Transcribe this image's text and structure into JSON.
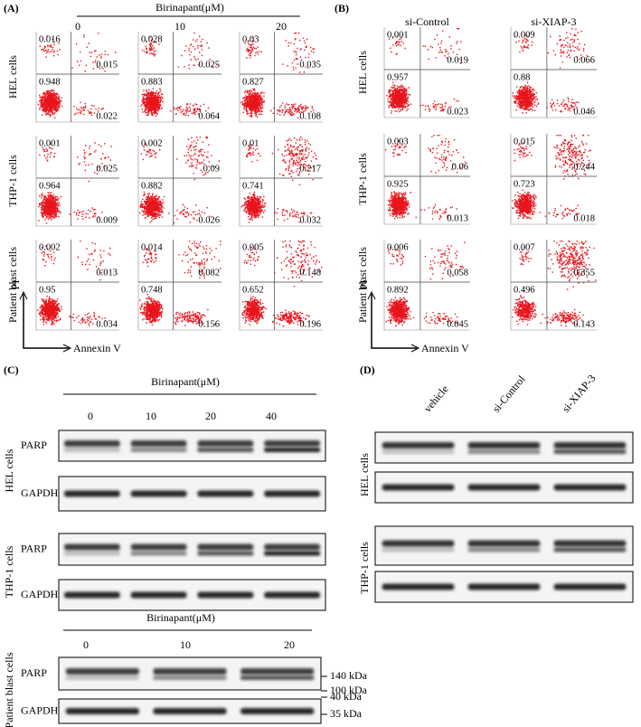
{
  "panel_a": {
    "label": "(A)",
    "treatment": "Birinapant(μM)",
    "columns": [
      "0",
      "10",
      "20"
    ],
    "rows": [
      {
        "cell_line": "HEL cells",
        "plots": [
          [
            "0.016",
            "0.015",
            "0.948",
            "0.022"
          ],
          [
            "0.028",
            "0.025",
            "0.883",
            "0.064"
          ],
          [
            "0.03",
            "0.035",
            "0.827",
            "0.108"
          ]
        ]
      },
      {
        "cell_line": "THP-1 cells",
        "plots": [
          [
            "0.001",
            "0.025",
            "0.964",
            "0.009"
          ],
          [
            "0.002",
            "0.09",
            "0.882",
            "0.026"
          ],
          [
            "0.01",
            "0.217",
            "0.741",
            "0.032"
          ]
        ]
      },
      {
        "cell_line": "Patient blast cells",
        "plots": [
          [
            "0.002",
            "0.013",
            "0.95",
            "0.034"
          ],
          [
            "0.014",
            "0.082",
            "0.748",
            "0.156"
          ],
          [
            "0.005",
            "0.148",
            "0.652",
            "0.196"
          ]
        ]
      }
    ],
    "y_axis": "PI",
    "x_axis": "Annexin V"
  },
  "panel_b": {
    "label": "(B)",
    "columns": [
      "si-Control",
      "si-XIAP-3"
    ],
    "rows": [
      {
        "cell_line": "HEL cells",
        "plots": [
          [
            "0.001",
            "0.019",
            "0.957",
            "0.023"
          ],
          [
            "0.009",
            "0.066",
            "0.88",
            "0.046"
          ]
        ]
      },
      {
        "cell_line": "THP-1 cells",
        "plots": [
          [
            "0.003",
            "0.06",
            "0.925",
            "0.013"
          ],
          [
            "0.015",
            "0.244",
            "0.723",
            "0.018"
          ]
        ]
      },
      {
        "cell_line": "Patient blast cells",
        "plots": [
          [
            "0.006",
            "0.058",
            "0.892",
            "0.045"
          ],
          [
            "0.007",
            "0.355",
            "0.496",
            "0.143"
          ]
        ]
      }
    ],
    "y_axis": "PI",
    "x_axis": "Annexin V"
  },
  "panel_c": {
    "label": "(C)",
    "blots": [
      {
        "treatment": "Birinapant(μM)",
        "lanes": [
          "0",
          "10",
          "20",
          "40"
        ],
        "groups": [
          {
            "cell_line": "HEL cells",
            "bands": [
              "PARP",
              "GAPDH"
            ]
          },
          {
            "cell_line": "THP-1 cells",
            "bands": [
              "PARP",
              "GAPDH"
            ]
          }
        ]
      },
      {
        "treatment": "Birinapant(μM)",
        "lanes": [
          "0",
          "10",
          "20"
        ],
        "groups": [
          {
            "cell_line": "Patient blast cells",
            "bands": [
              "PARP",
              "GAPDH"
            ]
          }
        ],
        "markers": [
          "140 kDa",
          "100 kDa",
          "40 kDa",
          "35 kDa"
        ]
      }
    ]
  },
  "panel_d": {
    "label": "(D)",
    "lanes": [
      "vehicle",
      "si-Control",
      "si-XIAP-3"
    ],
    "groups": [
      {
        "cell_line": "HEL cells"
      },
      {
        "cell_line": "THP-1 cells"
      }
    ]
  }
}
